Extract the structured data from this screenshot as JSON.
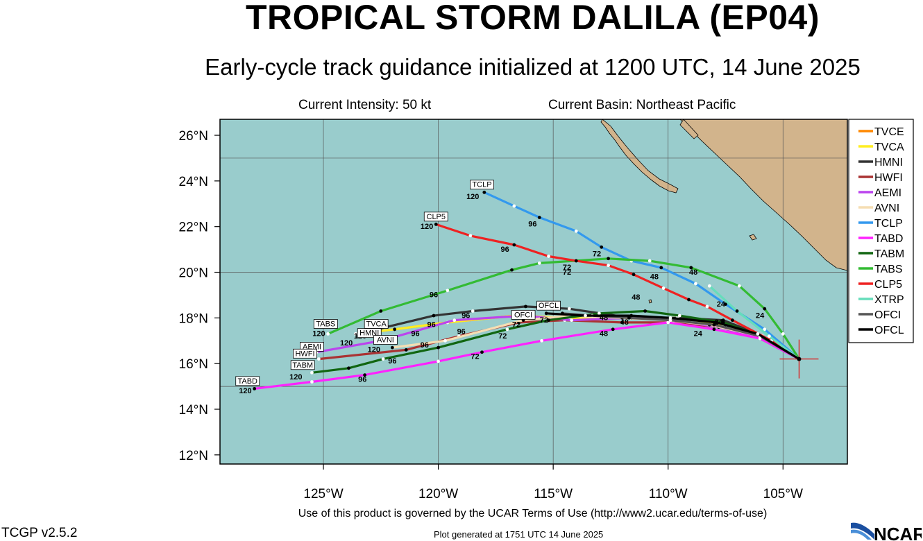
{
  "header": {
    "title": "TROPICAL STORM DALILA (EP04)",
    "subtitle": "Early-cycle track guidance initialized at 1200 UTC, 14 June 2025",
    "intensity": "Current Intensity: 50 kt",
    "basin": "Current Basin: Northeast Pacific"
  },
  "footer": {
    "terms": "Use of this product is governed by the UCAR Terms of Use (http://www2.ucar.edu/terms-of-use)",
    "generated": "Plot generated at 1751 UTC   14 June 2025",
    "version": "TCGP v2.5.2",
    "logo_text": "NCAR"
  },
  "colors": {
    "ocean": "#99cccc",
    "land": "#d2b48c",
    "grid": "#555555",
    "storm_marker": "#dd2222"
  },
  "chart_data": {
    "type": "line",
    "xlim": [
      -129.5,
      -102.2
    ],
    "ylim": [
      11.6,
      26.7
    ],
    "x_ticks": [
      -125,
      -120,
      -115,
      -110,
      -105
    ],
    "x_tick_labels": [
      "125°W",
      "120°W",
      "115°W",
      "110°W",
      "105°W"
    ],
    "y_ticks": [
      12,
      14,
      16,
      18,
      20,
      22,
      24,
      26
    ],
    "y_tick_labels": [
      "12°N",
      "14°N",
      "16°N",
      "18°N",
      "20°N",
      "22°N",
      "24°N",
      "26°N"
    ],
    "gridlines": {
      "lons": [
        -125,
        -120,
        -115,
        -110,
        -105
      ],
      "lats": [
        15,
        20,
        25
      ]
    },
    "storm_position": [
      -104.3,
      16.2
    ],
    "legend_position": "right",
    "series": [
      {
        "name": "TVCE",
        "color": "#ff8800",
        "points": [
          [
            -104.3,
            16.2
          ],
          [
            -105.9,
            17.2
          ],
          [
            -107.5,
            17.7
          ],
          [
            -109.5,
            18.0
          ],
          [
            -111.6,
            18.0
          ],
          [
            -114.3,
            18.0
          ],
          [
            -116.7,
            18.1
          ],
          [
            -119.6,
            17.8
          ],
          [
            -121.9,
            17.5
          ],
          [
            -123.6,
            17.3
          ]
        ]
      },
      {
        "name": "TVCA",
        "color": "#ffee22",
        "points": [
          [
            -104.3,
            16.2
          ],
          [
            -105.9,
            17.2
          ],
          [
            -107.5,
            17.7
          ],
          [
            -109.5,
            18.0
          ],
          [
            -111.6,
            18.0
          ],
          [
            -114.3,
            18.0
          ],
          [
            -116.7,
            18.1
          ],
          [
            -119.6,
            17.8
          ],
          [
            -121.9,
            17.5
          ],
          [
            -123.6,
            17.3
          ]
        ]
      },
      {
        "name": "HMNI",
        "color": "#333333",
        "points": [
          [
            -104.3,
            16.2
          ],
          [
            -106.1,
            17.3
          ],
          [
            -107.6,
            17.9
          ],
          [
            -109.6,
            18.0
          ],
          [
            -111.6,
            18.0
          ],
          [
            -114.3,
            18.4
          ],
          [
            -116.2,
            18.5
          ],
          [
            -118.5,
            18.3
          ],
          [
            -120.2,
            18.1
          ],
          [
            -123.5,
            17.3
          ]
        ]
      },
      {
        "name": "HWFI",
        "color": "#aa3333",
        "points": [
          [
            -104.3,
            16.2
          ],
          [
            -106.0,
            17.1
          ],
          [
            -107.8,
            17.6
          ],
          [
            -109.8,
            17.8
          ],
          [
            -112.0,
            17.8
          ],
          [
            -114.5,
            17.9
          ],
          [
            -116.5,
            17.8
          ],
          [
            -119.1,
            17.2
          ],
          [
            -121.4,
            16.6
          ],
          [
            -125.2,
            16.2
          ]
        ]
      },
      {
        "name": "AEMI",
        "color": "#bb44ee",
        "points": [
          [
            -104.3,
            16.2
          ],
          [
            -106.0,
            17.1
          ],
          [
            -107.8,
            17.6
          ],
          [
            -109.8,
            17.9
          ],
          [
            -111.8,
            18.0
          ],
          [
            -114.2,
            17.9
          ],
          [
            -116.3,
            18.1
          ],
          [
            -119.3,
            17.9
          ],
          [
            -122.5,
            17.0
          ],
          [
            -125.3,
            16.5
          ]
        ]
      },
      {
        "name": "AVNI",
        "color": "#f5deb3",
        "points": [
          [
            -104.3,
            16.2
          ],
          [
            -106.0,
            17.2
          ],
          [
            -108.2,
            17.7
          ],
          [
            -110.0,
            17.9
          ],
          [
            -112.0,
            18.0
          ],
          [
            -114.3,
            18.1
          ],
          [
            -116.3,
            17.9
          ],
          [
            -119.7,
            17.0
          ],
          [
            -122.0,
            16.7
          ]
        ]
      },
      {
        "name": "TCLP",
        "color": "#3399ee",
        "points": [
          [
            -104.3,
            16.2
          ],
          [
            -105.8,
            17.5
          ],
          [
            -107.5,
            18.6
          ],
          [
            -108.8,
            19.5
          ],
          [
            -110.3,
            20.2
          ],
          [
            -111.6,
            20.5
          ],
          [
            -112.9,
            21.1
          ],
          [
            -114.0,
            21.8
          ],
          [
            -115.6,
            22.4
          ],
          [
            -116.7,
            22.9
          ],
          [
            -118.0,
            23.5
          ]
        ]
      },
      {
        "name": "TABD",
        "color": "#ff22ff",
        "points": [
          [
            -104.3,
            16.2
          ],
          [
            -106.0,
            17.1
          ],
          [
            -108.0,
            17.5
          ],
          [
            -110.0,
            17.8
          ],
          [
            -112.4,
            17.5
          ],
          [
            -115.5,
            17.0
          ],
          [
            -118.1,
            16.5
          ],
          [
            -120.0,
            16.1
          ],
          [
            -123.2,
            15.5
          ],
          [
            -125.5,
            15.2
          ],
          [
            -128.0,
            14.9
          ]
        ]
      },
      {
        "name": "TABM",
        "color": "#116611",
        "points": [
          [
            -104.3,
            16.2
          ],
          [
            -105.9,
            17.2
          ],
          [
            -107.6,
            17.8
          ],
          [
            -109.5,
            18.1
          ],
          [
            -111.0,
            18.3
          ],
          [
            -113.0,
            18.2
          ],
          [
            -115.2,
            17.9
          ],
          [
            -117.0,
            17.5
          ],
          [
            -120.0,
            16.7
          ],
          [
            -122.4,
            16.2
          ],
          [
            -123.9,
            15.8
          ],
          [
            -125.5,
            15.6
          ]
        ]
      },
      {
        "name": "TABS",
        "color": "#33bb33",
        "points": [
          [
            -104.3,
            16.2
          ],
          [
            -105.0,
            17.3
          ],
          [
            -105.8,
            18.4
          ],
          [
            -106.9,
            19.4
          ],
          [
            -109.0,
            20.2
          ],
          [
            -110.8,
            20.5
          ],
          [
            -112.6,
            20.6
          ],
          [
            -115.6,
            20.4
          ],
          [
            -116.8,
            20.1
          ],
          [
            -119.6,
            19.2
          ],
          [
            -122.5,
            18.3
          ],
          [
            -124.8,
            17.3
          ]
        ]
      },
      {
        "name": "CLP5",
        "color": "#ee2222",
        "points": [
          [
            -104.3,
            16.2
          ],
          [
            -105.5,
            17.0
          ],
          [
            -107.2,
            17.9
          ],
          [
            -108.3,
            18.5
          ],
          [
            -109.1,
            18.8
          ],
          [
            -110.2,
            19.3
          ],
          [
            -111.5,
            19.9
          ],
          [
            -112.6,
            20.3
          ],
          [
            -114.0,
            20.5
          ],
          [
            -115.2,
            20.7
          ],
          [
            -116.7,
            21.2
          ],
          [
            -118.6,
            21.6
          ],
          [
            -120.1,
            22.1
          ]
        ]
      },
      {
        "name": "XTRP",
        "color": "#66ddbb",
        "points": [
          [
            -104.3,
            16.2
          ],
          [
            -105.6,
            17.2
          ],
          [
            -107.0,
            18.3
          ],
          [
            -108.2,
            19.4
          ]
        ]
      },
      {
        "name": "OFCI",
        "color": "#555555",
        "points": [
          [
            -104.3,
            16.2
          ],
          [
            -106.0,
            17.2
          ],
          [
            -108.0,
            17.7
          ],
          [
            -109.9,
            17.9
          ],
          [
            -111.7,
            18.0
          ],
          [
            -113.3,
            18.1
          ],
          [
            -114.6,
            18.2
          ]
        ]
      },
      {
        "name": "OFCL",
        "color": "#000000",
        "points": [
          [
            -104.3,
            16.2
          ],
          [
            -106.1,
            17.3
          ],
          [
            -107.9,
            17.8
          ],
          [
            -109.9,
            18.0
          ],
          [
            -111.6,
            18.1
          ],
          [
            -113.6,
            18.1
          ],
          [
            -115.3,
            18.2
          ]
        ]
      }
    ],
    "model_labels": [
      {
        "text": "TCLP",
        "lon": -118.1,
        "lat": 23.7
      },
      {
        "text": "CLP5",
        "lon": -120.1,
        "lat": 22.3
      },
      {
        "text": "TABS",
        "lon": -124.9,
        "lat": 17.6
      },
      {
        "text": "TVCA",
        "lon": -122.7,
        "lat": 17.6
      },
      {
        "text": "HMNI",
        "lon": -123.0,
        "lat": 17.2
      },
      {
        "text": "AVNI",
        "lon": -122.3,
        "lat": 16.9
      },
      {
        "text": "AEMI",
        "lon": -125.5,
        "lat": 16.6
      },
      {
        "text": "HWFI",
        "lon": -125.8,
        "lat": 16.3
      },
      {
        "text": "TABM",
        "lon": -125.9,
        "lat": 15.8
      },
      {
        "text": "TABD",
        "lon": -128.3,
        "lat": 15.1
      },
      {
        "text": "OFCL",
        "lon": -115.2,
        "lat": 18.4
      },
      {
        "text": "OFCI",
        "lon": -116.3,
        "lat": 18.0
      }
    ],
    "hour_labels": [
      {
        "text": "120",
        "lon": -118.5,
        "lat": 23.2
      },
      {
        "text": "120",
        "lon": -120.5,
        "lat": 21.9
      },
      {
        "text": "120",
        "lon": -125.2,
        "lat": 17.2
      },
      {
        "text": "120",
        "lon": -123.4,
        "lat": 17.1
      },
      {
        "text": "120",
        "lon": -124.0,
        "lat": 16.8
      },
      {
        "text": "120",
        "lon": -122.8,
        "lat": 16.5
      },
      {
        "text": "120",
        "lon": -125.7,
        "lat": 15.9
      },
      {
        "text": "120",
        "lon": -126.2,
        "lat": 15.3
      },
      {
        "text": "120",
        "lon": -128.4,
        "lat": 14.7
      },
      {
        "text": "96",
        "lon": -115.9,
        "lat": 22.0
      },
      {
        "text": "96",
        "lon": -117.1,
        "lat": 20.9
      },
      {
        "text": "96",
        "lon": -120.2,
        "lat": 18.9
      },
      {
        "text": "96",
        "lon": -118.8,
        "lat": 18.0
      },
      {
        "text": "96",
        "lon": -120.3,
        "lat": 17.6
      },
      {
        "text": "96",
        "lon": -121.0,
        "lat": 17.2
      },
      {
        "text": "96",
        "lon": -119.0,
        "lat": 17.3
      },
      {
        "text": "96",
        "lon": -120.6,
        "lat": 16.7
      },
      {
        "text": "96",
        "lon": -122.0,
        "lat": 16.0
      },
      {
        "text": "96",
        "lon": -123.3,
        "lat": 15.2
      },
      {
        "text": "72",
        "lon": -113.1,
        "lat": 20.7
      },
      {
        "text": "72",
        "lon": -114.4,
        "lat": 20.1
      },
      {
        "text": "72",
        "lon": -114.4,
        "lat": 19.9
      },
      {
        "text": "72",
        "lon": -115.4,
        "lat": 17.8
      },
      {
        "text": "72",
        "lon": -116.6,
        "lat": 17.6
      },
      {
        "text": "72",
        "lon": -117.2,
        "lat": 17.1
      },
      {
        "text": "72",
        "lon": -118.4,
        "lat": 16.2
      },
      {
        "text": "48",
        "lon": -110.6,
        "lat": 19.7
      },
      {
        "text": "48",
        "lon": -108.9,
        "lat": 19.9
      },
      {
        "text": "48",
        "lon": -111.4,
        "lat": 18.8
      },
      {
        "text": "48",
        "lon": -112.8,
        "lat": 17.9
      },
      {
        "text": "48",
        "lon": -111.9,
        "lat": 17.7
      },
      {
        "text": "48",
        "lon": -112.8,
        "lat": 17.2
      },
      {
        "text": "24",
        "lon": -107.7,
        "lat": 18.5
      },
      {
        "text": "24",
        "lon": -106.0,
        "lat": 18.0
      },
      {
        "text": "24",
        "lon": -107.8,
        "lat": 17.7
      },
      {
        "text": "24",
        "lon": -108.7,
        "lat": 17.2
      }
    ]
  }
}
